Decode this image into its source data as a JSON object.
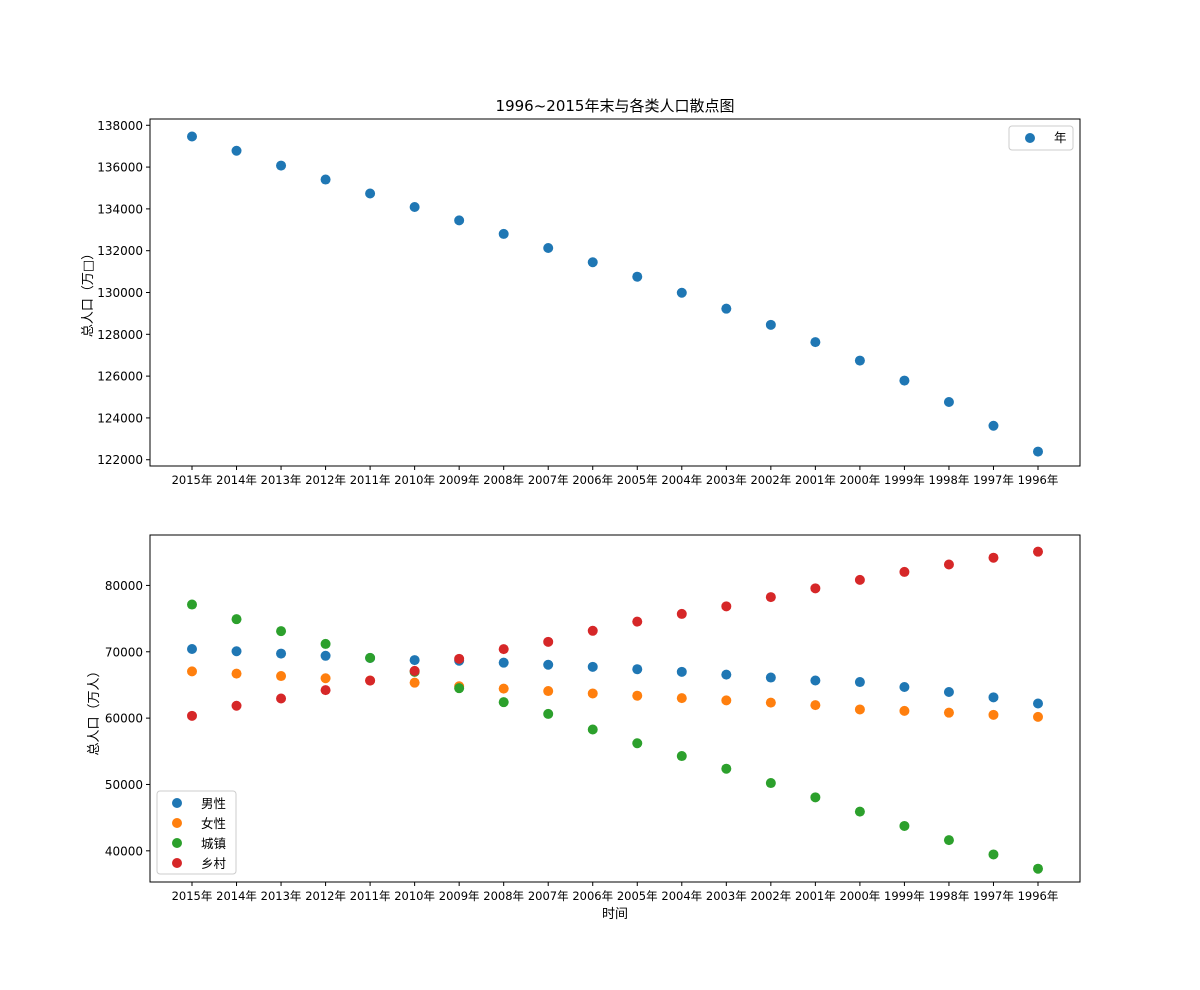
{
  "figure": {
    "title": "1996~2015年末与各类人口散点图"
  },
  "chart_data": [
    {
      "type": "scatter",
      "title": "1996~2015年末与各类人口散点图",
      "xlabel": "",
      "ylabel": "总人口（万□）",
      "categories": [
        "2015年",
        "2014年",
        "2013年",
        "2012年",
        "2011年",
        "2010年",
        "2009年",
        "2008年",
        "2007年",
        "2006年",
        "2005年",
        "2004年",
        "2003年",
        "2002年",
        "2001年",
        "2000年",
        "1999年",
        "1998年",
        "1997年",
        "1996年"
      ],
      "ylim": [
        121700,
        138300
      ],
      "yticks": [
        122000,
        124000,
        126000,
        128000,
        130000,
        132000,
        134000,
        136000,
        138000
      ],
      "legend_position": "top-right",
      "series": [
        {
          "name": "年",
          "color": "#1f77b4",
          "values": [
            137462,
            136782,
            136072,
            135404,
            134735,
            134091,
            133450,
            132802,
            132129,
            131448,
            130756,
            129988,
            129227,
            128453,
            127627,
            126743,
            125786,
            124761,
            123626,
            122389
          ]
        }
      ]
    },
    {
      "type": "scatter",
      "title": "",
      "xlabel": "时间",
      "ylabel": "总人口（万人）",
      "categories": [
        "2015年",
        "2014年",
        "2013年",
        "2012年",
        "2011年",
        "2010年",
        "2009年",
        "2008年",
        "2007年",
        "2006年",
        "2005年",
        "2004年",
        "2003年",
        "2002年",
        "2001年",
        "2000年",
        "1999年",
        "1998年",
        "1997年",
        "1996年"
      ],
      "ylim": [
        35300,
        87600
      ],
      "yticks": [
        40000,
        50000,
        60000,
        70000,
        80000
      ],
      "legend_position": "lower-left",
      "series": [
        {
          "name": "男性",
          "color": "#1f77b4",
          "values": [
            70414,
            70079,
            69728,
            69395,
            69068,
            68748,
            68647,
            68357,
            68048,
            67728,
            67375,
            66976,
            66556,
            66115,
            65672,
            65437,
            64692,
            63940,
            63131,
            62200
          ]
        },
        {
          "name": "女性",
          "color": "#ff7f0e",
          "values": [
            67048,
            66703,
            66344,
            66009,
            65667,
            65343,
            64803,
            64445,
            64081,
            63720,
            63381,
            63012,
            62671,
            62338,
            61955,
            61306,
            61094,
            60821,
            60495,
            60189
          ]
        },
        {
          "name": "城镇",
          "color": "#2ca02c",
          "values": [
            77116,
            74916,
            73111,
            71182,
            69079,
            66978,
            64512,
            62403,
            60633,
            58288,
            56212,
            54283,
            52376,
            50212,
            48064,
            45906,
            43748,
            41608,
            39449,
            37304
          ]
        },
        {
          "name": "乡村",
          "color": "#d62728",
          "values": [
            60346,
            61866,
            62961,
            64222,
            65656,
            67113,
            68938,
            70399,
            71496,
            73160,
            74544,
            75705,
            76851,
            78241,
            79563,
            80837,
            82038,
            83153,
            84177,
            85085
          ]
        }
      ]
    }
  ]
}
